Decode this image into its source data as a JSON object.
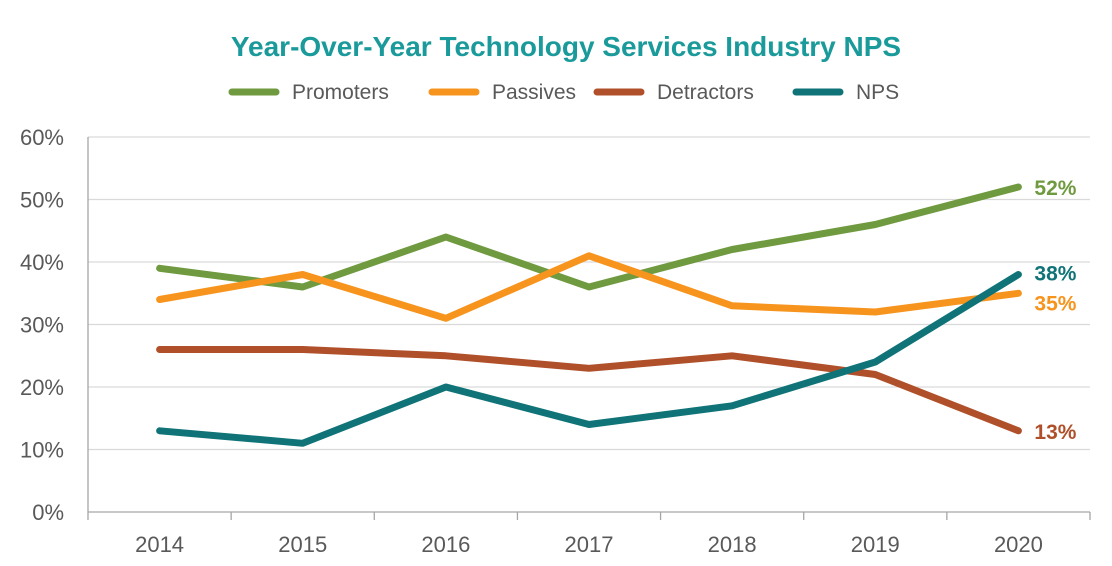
{
  "chart_data": {
    "type": "line",
    "title": "Year-Over-Year Technology Services Industry NPS",
    "categories": [
      "2014",
      "2015",
      "2016",
      "2017",
      "2018",
      "2019",
      "2020"
    ],
    "ylim": [
      0,
      60
    ],
    "yticks": [
      0,
      10,
      20,
      30,
      40,
      50,
      60
    ],
    "ytick_labels": [
      "0%",
      "10%",
      "20%",
      "30%",
      "40%",
      "50%",
      "60%"
    ],
    "grid": "horizontal",
    "legend_position": "top",
    "title_color": "#1a9a9a",
    "series": [
      {
        "name": "Promoters",
        "color": "#6f9a3f",
        "values": [
          39,
          36,
          44,
          36,
          42,
          46,
          52
        ],
        "end_label": "52%"
      },
      {
        "name": "Passives",
        "color": "#f7941d",
        "values": [
          34,
          38,
          31,
          41,
          33,
          32,
          35
        ],
        "end_label": "35%"
      },
      {
        "name": "Detractors",
        "color": "#b0502a",
        "values": [
          26,
          26,
          25,
          23,
          25,
          22,
          13
        ],
        "end_label": "13%"
      },
      {
        "name": "NPS",
        "color": "#0f7378",
        "values": [
          13,
          11,
          20,
          14,
          17,
          24,
          38
        ],
        "end_label": "38%"
      }
    ]
  }
}
